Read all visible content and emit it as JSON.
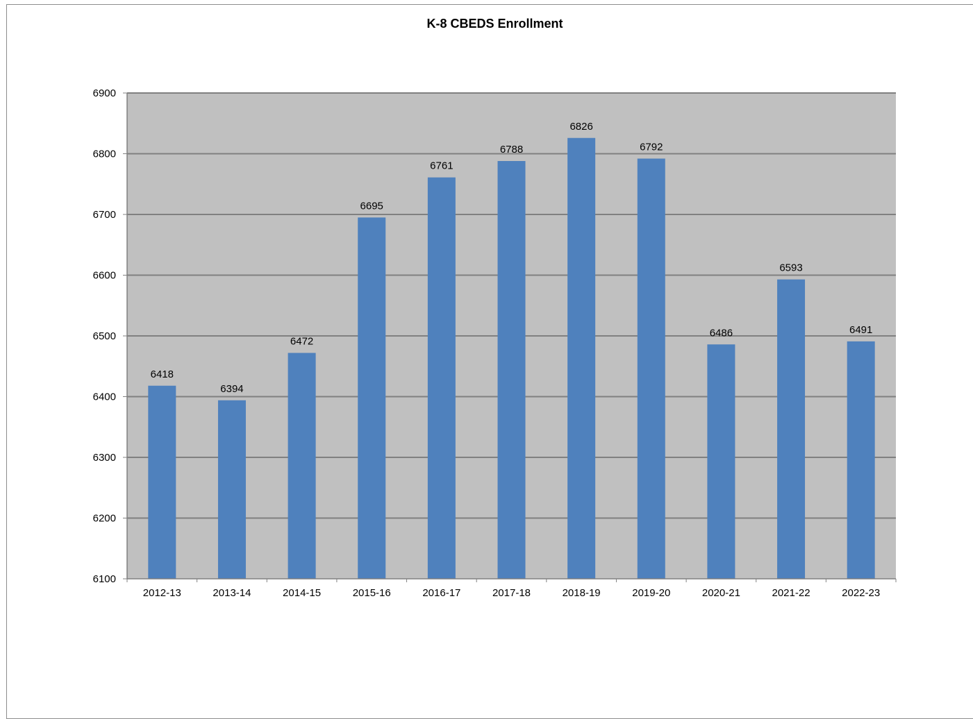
{
  "chart_data": {
    "type": "bar",
    "title": "K-8 CBEDS Enrollment",
    "categories": [
      "2012-13",
      "2013-14",
      "2014-15",
      "2015-16",
      "2016-17",
      "2017-18",
      "2018-19",
      "2019-20",
      "2020-21",
      "2021-22",
      "2022-23"
    ],
    "values": [
      6418,
      6394,
      6472,
      6695,
      6761,
      6788,
      6826,
      6792,
      6486,
      6593,
      6491
    ],
    "data_labels": [
      "6418",
      "6394",
      "6472",
      "6695",
      "6761",
      "6788",
      "6826",
      "6792",
      "6486",
      "6593",
      "6491"
    ],
    "ylim": [
      6100,
      6900
    ],
    "yticks": [
      6100,
      6200,
      6300,
      6400,
      6500,
      6600,
      6700,
      6800,
      6900
    ],
    "ytick_labels": [
      "6100",
      "6200",
      "6300",
      "6400",
      "6500",
      "6600",
      "6700",
      "6800",
      "6900"
    ],
    "xlabel": "",
    "ylabel": "",
    "grid": true,
    "legend": "none",
    "colors": {
      "bar": "#4f81bd",
      "plot_background": "#c0c0c0",
      "gridline": "#808080",
      "axis": "#808080"
    }
  }
}
